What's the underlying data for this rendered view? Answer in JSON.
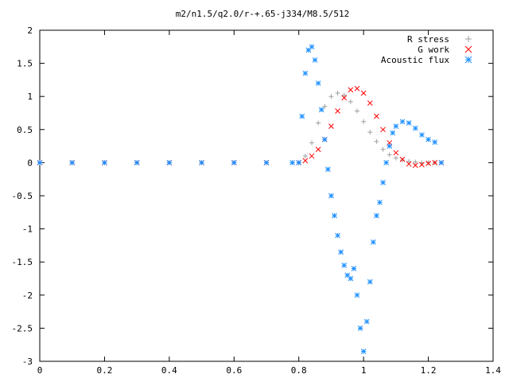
{
  "chart_data": {
    "type": "scatter",
    "title": "m2/n1.5/q2.0/r-+.65-j334/M8.5/512",
    "xlabel": "",
    "ylabel": "",
    "xlim": [
      0,
      1.4
    ],
    "ylim": [
      -3,
      2
    ],
    "x_ticks": [
      "0",
      "0.2",
      "0.4",
      "0.6",
      "0.8",
      "1",
      "1.2",
      "1.4"
    ],
    "y_ticks": [
      "2",
      "1.5",
      "1",
      "0.5",
      "0",
      "-0.5",
      "-1",
      "-1.5",
      "-2",
      "-2.5",
      "-3"
    ],
    "legend_position": "top-right",
    "grid": false,
    "series": [
      {
        "name": "R stress",
        "marker": "+",
        "color": "#a0a0a0",
        "points": [
          [
            0.0,
            0
          ],
          [
            0.1,
            0
          ],
          [
            0.2,
            0
          ],
          [
            0.3,
            0
          ],
          [
            0.4,
            0
          ],
          [
            0.5,
            0
          ],
          [
            0.6,
            0
          ],
          [
            0.7,
            0
          ],
          [
            0.78,
            0
          ],
          [
            0.8,
            0
          ],
          [
            0.82,
            0.1
          ],
          [
            0.84,
            0.3
          ],
          [
            0.86,
            0.6
          ],
          [
            0.88,
            0.85
          ],
          [
            0.9,
            1.0
          ],
          [
            0.92,
            1.05
          ],
          [
            0.94,
            1.02
          ],
          [
            0.96,
            0.92
          ],
          [
            0.98,
            0.78
          ],
          [
            1.0,
            0.62
          ],
          [
            1.02,
            0.46
          ],
          [
            1.04,
            0.32
          ],
          [
            1.06,
            0.2
          ],
          [
            1.08,
            0.12
          ],
          [
            1.1,
            0.07
          ],
          [
            1.12,
            0.04
          ],
          [
            1.14,
            0.02
          ],
          [
            1.16,
            0.01
          ],
          [
            1.18,
            0.0
          ],
          [
            1.2,
            0.0
          ],
          [
            1.22,
            0.0
          ]
        ]
      },
      {
        "name": "G work",
        "marker": "x",
        "color": "#ff0000",
        "points": [
          [
            0.0,
            0
          ],
          [
            0.1,
            0
          ],
          [
            0.2,
            0
          ],
          [
            0.3,
            0
          ],
          [
            0.4,
            0
          ],
          [
            0.5,
            0
          ],
          [
            0.6,
            0
          ],
          [
            0.7,
            0
          ],
          [
            0.8,
            0
          ],
          [
            0.82,
            0.03
          ],
          [
            0.84,
            0.1
          ],
          [
            0.86,
            0.2
          ],
          [
            0.88,
            0.35
          ],
          [
            0.9,
            0.55
          ],
          [
            0.92,
            0.78
          ],
          [
            0.94,
            0.98
          ],
          [
            0.96,
            1.1
          ],
          [
            0.98,
            1.12
          ],
          [
            1.0,
            1.05
          ],
          [
            1.02,
            0.9
          ],
          [
            1.04,
            0.7
          ],
          [
            1.06,
            0.5
          ],
          [
            1.08,
            0.3
          ],
          [
            1.1,
            0.15
          ],
          [
            1.12,
            0.05
          ],
          [
            1.14,
            -0.02
          ],
          [
            1.16,
            -0.04
          ],
          [
            1.18,
            -0.03
          ],
          [
            1.2,
            -0.01
          ],
          [
            1.22,
            0.0
          ],
          [
            1.24,
            0.0
          ]
        ]
      },
      {
        "name": "Acoustic flux",
        "marker": "*",
        "color": "#1e90ff",
        "points": [
          [
            0.0,
            0
          ],
          [
            0.1,
            0
          ],
          [
            0.2,
            0
          ],
          [
            0.3,
            0
          ],
          [
            0.4,
            0
          ],
          [
            0.5,
            0
          ],
          [
            0.6,
            0
          ],
          [
            0.7,
            0
          ],
          [
            0.78,
            0
          ],
          [
            0.8,
            0
          ],
          [
            0.81,
            0.7
          ],
          [
            0.82,
            1.35
          ],
          [
            0.83,
            1.7
          ],
          [
            0.84,
            1.75
          ],
          [
            0.85,
            1.55
          ],
          [
            0.86,
            1.2
          ],
          [
            0.87,
            0.8
          ],
          [
            0.88,
            0.35
          ],
          [
            0.89,
            -0.1
          ],
          [
            0.9,
            -0.5
          ],
          [
            0.91,
            -0.8
          ],
          [
            0.92,
            -1.1
          ],
          [
            0.93,
            -1.35
          ],
          [
            0.94,
            -1.55
          ],
          [
            0.95,
            -1.7
          ],
          [
            0.96,
            -1.75
          ],
          [
            0.97,
            -1.6
          ],
          [
            0.98,
            -2.0
          ],
          [
            0.99,
            -2.5
          ],
          [
            1.0,
            -2.85
          ],
          [
            1.01,
            -2.4
          ],
          [
            1.02,
            -1.8
          ],
          [
            1.03,
            -1.2
          ],
          [
            1.04,
            -0.8
          ],
          [
            1.05,
            -0.6
          ],
          [
            1.06,
            -0.3
          ],
          [
            1.07,
            0.0
          ],
          [
            1.08,
            0.25
          ],
          [
            1.09,
            0.45
          ],
          [
            1.1,
            0.55
          ],
          [
            1.12,
            0.62
          ],
          [
            1.14,
            0.6
          ],
          [
            1.16,
            0.52
          ],
          [
            1.18,
            0.42
          ],
          [
            1.2,
            0.35
          ],
          [
            1.22,
            0.31
          ],
          [
            1.24,
            0.0
          ]
        ]
      }
    ]
  }
}
